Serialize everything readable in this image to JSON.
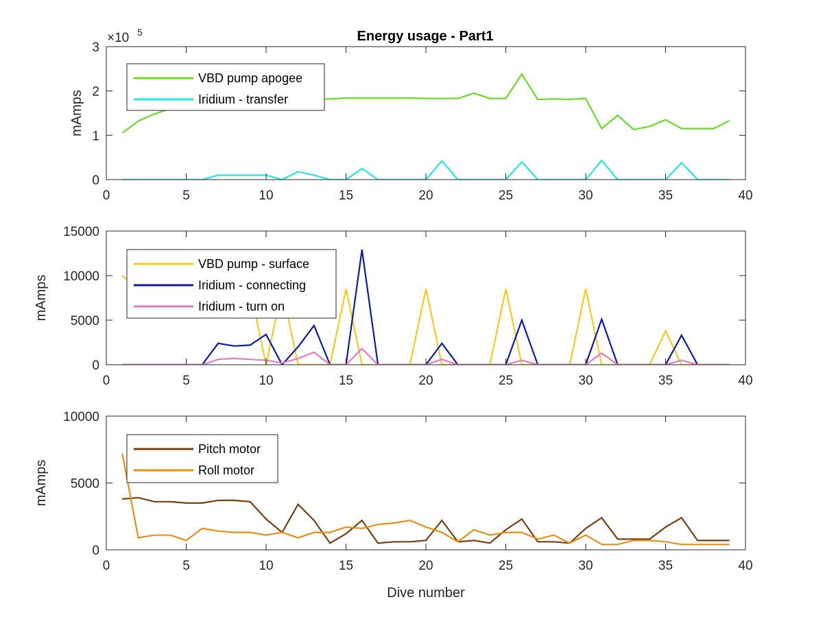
{
  "chart_data": [
    {
      "type": "line",
      "title": "Energy usage - Part1",
      "xlabel": "",
      "ylabel": "mAmps",
      "xlim": [
        0,
        40
      ],
      "ylim": [
        0,
        300000
      ],
      "xticks": [
        0,
        5,
        10,
        15,
        20,
        25,
        30,
        35,
        40
      ],
      "yticks": [
        0,
        100000,
        200000,
        300000
      ],
      "ytick_labels": [
        "0",
        "1",
        "2",
        "3"
      ],
      "y_exponent_label": "×10^5",
      "grid": false,
      "legend_placement": "top-left",
      "x": [
        1,
        2,
        3,
        4,
        5,
        6,
        7,
        8,
        9,
        10,
        11,
        12,
        13,
        14,
        15,
        16,
        17,
        18,
        19,
        20,
        21,
        22,
        23,
        24,
        25,
        26,
        27,
        28,
        29,
        30,
        31,
        32,
        33,
        34,
        35,
        36,
        37,
        38,
        39
      ],
      "series": [
        {
          "name": "VBD pump apogee",
          "color": "#66dd22",
          "values": [
            105000,
            132000,
            148000,
            160000,
            170000,
            176000,
            179000,
            180000,
            180000,
            181000,
            181000,
            182000,
            181000,
            182000,
            184000,
            184000,
            184000,
            184000,
            184000,
            183000,
            183000,
            183000,
            195000,
            183000,
            183000,
            238000,
            181000,
            182000,
            181000,
            183000,
            115000,
            145000,
            113000,
            120000,
            135000,
            115000,
            115000,
            115000,
            133000
          ]
        },
        {
          "name": "Iridium - transfer",
          "color": "#22e5e5",
          "values": [
            0,
            0,
            0,
            0,
            0,
            0,
            10000,
            10000,
            10000,
            10000,
            0,
            18000,
            10000,
            0,
            0,
            25000,
            0,
            0,
            0,
            0,
            42000,
            0,
            0,
            0,
            0,
            40000,
            0,
            0,
            0,
            0,
            43000,
            0,
            0,
            0,
            0,
            38000,
            0,
            0,
            0
          ]
        }
      ]
    },
    {
      "type": "line",
      "title": "",
      "xlabel": "",
      "ylabel": "mAmps",
      "xlim": [
        0,
        40
      ],
      "ylim": [
        0,
        15000
      ],
      "xticks": [
        0,
        5,
        10,
        15,
        20,
        25,
        30,
        35,
        40
      ],
      "yticks": [
        0,
        5000,
        10000,
        15000
      ],
      "ytick_labels": [
        "0",
        "5000",
        "10000",
        "15000"
      ],
      "grid": false,
      "legend_placement": "top-left",
      "x": [
        1,
        2,
        3,
        4,
        5,
        6,
        7,
        8,
        9,
        10,
        11,
        12,
        13,
        14,
        15,
        16,
        17,
        18,
        19,
        20,
        21,
        22,
        23,
        24,
        25,
        26,
        27,
        28,
        29,
        30,
        31,
        32,
        33,
        34,
        35,
        36,
        37,
        38,
        39
      ],
      "series": [
        {
          "name": "VBD pump - surface",
          "color": "#f5cc1a",
          "values": [
            10000,
            8500,
            8500,
            8500,
            8500,
            8500,
            8500,
            8500,
            8500,
            0,
            8500,
            0,
            0,
            0,
            8500,
            0,
            0,
            0,
            0,
            8500,
            0,
            0,
            0,
            0,
            8500,
            0,
            0,
            0,
            0,
            8500,
            0,
            0,
            0,
            0,
            3800,
            0,
            0,
            0,
            0
          ]
        },
        {
          "name": "Iridium - connecting",
          "color": "#0a1aa8",
          "values": [
            0,
            0,
            0,
            0,
            0,
            0,
            2400,
            2100,
            2200,
            3400,
            0,
            2000,
            4400,
            0,
            0,
            12900,
            0,
            0,
            0,
            0,
            2400,
            0,
            0,
            0,
            0,
            5000,
            0,
            0,
            0,
            0,
            5100,
            0,
            0,
            0,
            0,
            3300,
            0,
            0,
            0
          ]
        },
        {
          "name": "Iridium - turn on",
          "color": "#e27ac5",
          "values": [
            0,
            0,
            0,
            0,
            0,
            0,
            600,
            700,
            600,
            500,
            200,
            700,
            1400,
            0,
            0,
            1800,
            0,
            0,
            0,
            0,
            600,
            0,
            0,
            0,
            0,
            500,
            0,
            0,
            0,
            0,
            1300,
            0,
            0,
            0,
            0,
            500,
            0,
            0,
            0
          ]
        }
      ]
    },
    {
      "type": "line",
      "title": "",
      "xlabel": "Dive number",
      "ylabel": "mAmps",
      "xlim": [
        0,
        40
      ],
      "ylim": [
        0,
        10000
      ],
      "xticks": [
        0,
        5,
        10,
        15,
        20,
        25,
        30,
        35,
        40
      ],
      "yticks": [
        0,
        5000,
        10000
      ],
      "ytick_labels": [
        "0",
        "5000",
        "10000"
      ],
      "grid": false,
      "legend_placement": "top-left",
      "x": [
        1,
        2,
        3,
        4,
        5,
        6,
        7,
        8,
        9,
        10,
        11,
        12,
        13,
        14,
        15,
        16,
        17,
        18,
        19,
        20,
        21,
        22,
        23,
        24,
        25,
        26,
        27,
        28,
        29,
        30,
        31,
        32,
        33,
        34,
        35,
        36,
        37,
        38,
        39
      ],
      "series": [
        {
          "name": "Pitch motor",
          "color": "#7a3f0d",
          "values": [
            3800,
            3900,
            3600,
            3600,
            3500,
            3500,
            3700,
            3700,
            3600,
            2300,
            1300,
            3400,
            2200,
            500,
            1200,
            2200,
            500,
            600,
            600,
            700,
            2200,
            600,
            700,
            500,
            1500,
            2300,
            600,
            600,
            500,
            1600,
            2400,
            800,
            800,
            800,
            1700,
            2400,
            700,
            700,
            700
          ]
        },
        {
          "name": "Roll motor",
          "color": "#ec8c10",
          "values": [
            7200,
            900,
            1100,
            1100,
            700,
            1600,
            1400,
            1300,
            1300,
            1100,
            1300,
            900,
            1300,
            1300,
            1700,
            1600,
            1900,
            2000,
            2200,
            1700,
            1300,
            600,
            1500,
            1100,
            1300,
            1300,
            800,
            1100,
            500,
            1100,
            400,
            400,
            700,
            700,
            600,
            400,
            400,
            400,
            400
          ]
        }
      ]
    }
  ],
  "exponent_base": "×10",
  "exponent_power": "5"
}
